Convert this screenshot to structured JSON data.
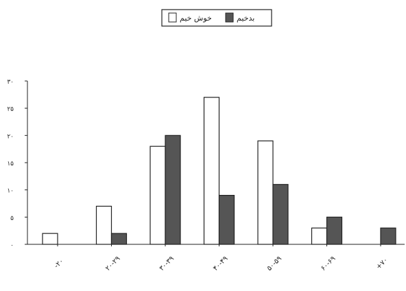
{
  "chart_data": {
    "type": "bar",
    "legend_position": "top-center",
    "categories": [
      "-۲۰",
      "۲۰-۲۹",
      "۳۰-۳۹",
      "۴۰-۴۹",
      "۵۰-۵۹",
      "۶۰-۶۹",
      "+۷۰"
    ],
    "series": [
      {
        "name": "خوش خیم",
        "values": [
          2,
          7,
          18,
          27,
          19,
          3,
          0
        ],
        "color": "#ffffff"
      },
      {
        "name": "بدخیم",
        "values": [
          0,
          2,
          20,
          9,
          11,
          5,
          3
        ],
        "color": "#555555"
      }
    ],
    "yticks": [
      "۰",
      "۵",
      "۱۰",
      "۱۵",
      "۲۰",
      "۲۵",
      "۳۰"
    ],
    "ylim": [
      0,
      30
    ],
    "grid": false
  }
}
